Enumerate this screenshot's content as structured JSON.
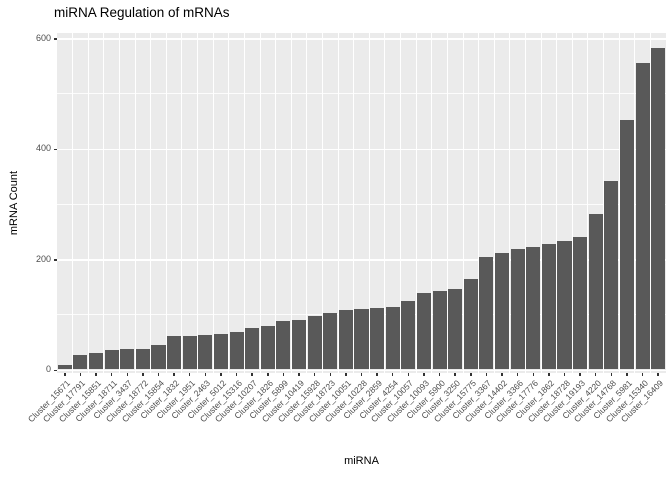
{
  "chart_data": {
    "type": "bar",
    "title": "miRNA Regulation of mRNAs",
    "xlabel": "miRNA",
    "ylabel": "mRNA Count",
    "categories": [
      "Cluster_15671",
      "Cluster_17791",
      "Cluster_15851",
      "Cluster_18711",
      "Cluster_3437",
      "Cluster_18772",
      "Cluster_15854",
      "Cluster_1832",
      "Cluster_1951",
      "Cluster_2463",
      "Cluster_5012",
      "Cluster_15316",
      "Cluster_10207",
      "Cluster_1826",
      "Cluster_5899",
      "Cluster_10419",
      "Cluster_15928",
      "Cluster_18723",
      "Cluster_10051",
      "Cluster_10228",
      "Cluster_2859",
      "Cluster_4254",
      "Cluster_10057",
      "Cluster_10093",
      "Cluster_5900",
      "Cluster_3250",
      "Cluster_15775",
      "Cluster_3367",
      "Cluster_14402",
      "Cluster_3366",
      "Cluster_17776",
      "Cluster_1862",
      "Cluster_18728",
      "Cluster_19193",
      "Cluster_4220",
      "Cluster_14768",
      "Cluster_5981",
      "Cluster_15340",
      "Cluster_16409"
    ],
    "values": [
      8,
      27,
      30,
      35,
      37,
      38,
      45,
      60,
      61,
      63,
      64,
      68,
      76,
      78,
      88,
      90,
      97,
      103,
      108,
      110,
      111,
      113,
      124,
      138,
      142,
      146,
      164,
      203,
      211,
      219,
      222,
      227,
      232,
      240,
      281,
      342,
      452,
      555,
      581
    ],
    "ylim": [
      0,
      600
    ],
    "yticks": [
      0,
      200,
      400,
      600
    ],
    "yticks_minor": [
      100,
      300,
      500
    ],
    "grid": true,
    "legend": "none",
    "bar_color": "#595959",
    "panel_bg": "#EBEBEB",
    "grid_color": "#FFFFFF",
    "tick_text_color": "#4D4D4D",
    "title_color": "#000000"
  }
}
